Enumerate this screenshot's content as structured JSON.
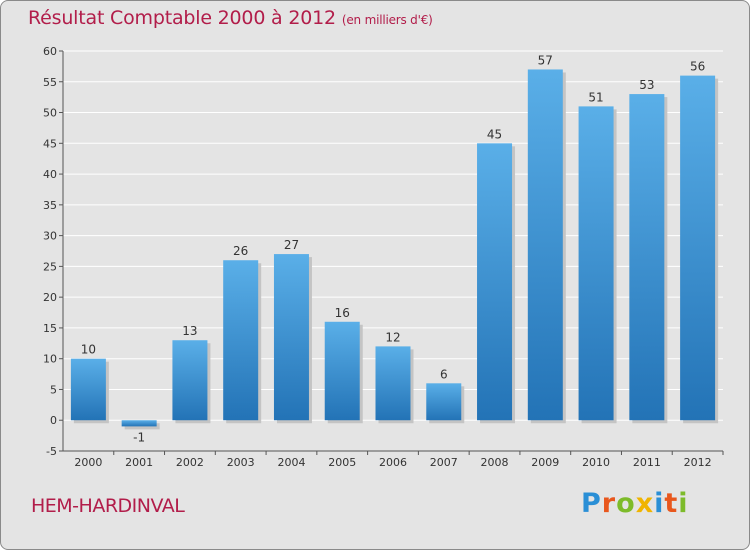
{
  "title": "Résultat Comptable 2000 à 2012",
  "subtitle": "(en milliers d'€)",
  "commune": "HEM-HARDINVAL",
  "logo": {
    "letters": [
      "P",
      "r",
      "o",
      "x",
      "i",
      "t",
      "i"
    ],
    "colors": [
      "#2a8fd6",
      "#e8571d",
      "#7dbb2a",
      "#f0b400",
      "#2a8fd6",
      "#e8571d",
      "#7dbb2a"
    ]
  },
  "colors": {
    "bar_top": "#5aafe8",
    "bar_bottom": "#2373b6",
    "text": "#b21d4a"
  },
  "chart_data": {
    "type": "bar",
    "title": "Résultat Comptable 2000 à 2012",
    "xlabel": "",
    "ylabel": "",
    "categories": [
      "2000",
      "2001",
      "2002",
      "2003",
      "2004",
      "2005",
      "2006",
      "2007",
      "2008",
      "2009",
      "2010",
      "2011",
      "2012"
    ],
    "values": [
      10,
      -1,
      13,
      26,
      27,
      16,
      12,
      6,
      45,
      57,
      51,
      53,
      56
    ],
    "data_labels": [
      "10",
      "-1",
      "13",
      "26",
      "27",
      "16",
      "12",
      "6",
      "45",
      "57",
      "51",
      "53",
      "56"
    ],
    "ylim": [
      -5,
      60
    ],
    "yticks": [
      -5,
      0,
      5,
      10,
      15,
      20,
      25,
      30,
      35,
      40,
      45,
      50,
      55,
      60
    ],
    "grid": true
  }
}
